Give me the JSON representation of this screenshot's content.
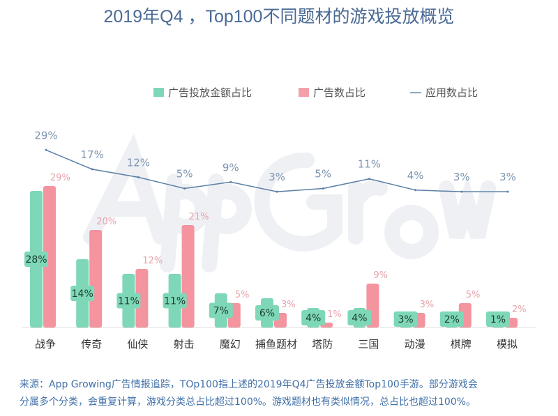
{
  "title": "2019年Q4 ，Top100不同题材的游戏投放概览",
  "watermark": "App Growing",
  "chart_data": {
    "type": "bar",
    "title": "2019年Q4 ，Top100不同题材的游戏投放概览",
    "categories": [
      "战争",
      "传奇",
      "仙侠",
      "射击",
      "魔幻",
      "捕鱼题材",
      "塔防",
      "三国",
      "动漫",
      "棋牌",
      "模拟"
    ],
    "series": [
      {
        "name": "广告投放金额占比",
        "kind": "bar",
        "color": "#7ed8b8",
        "values": [
          28,
          14,
          11,
          11,
          7,
          6,
          4,
          4,
          3,
          2,
          1
        ]
      },
      {
        "name": "广告数占比",
        "kind": "bar",
        "color": "#f4949f",
        "values": [
          29,
          20,
          12,
          21,
          5,
          3,
          1,
          9,
          3,
          5,
          2
        ]
      },
      {
        "name": "应用数占比",
        "kind": "line",
        "color": "#5a7fa6",
        "values": [
          29,
          17,
          12,
          5,
          9,
          3,
          5,
          11,
          4,
          3,
          3
        ]
      }
    ],
    "unit": "%",
    "legend": "top",
    "grid": false
  },
  "legend": {
    "items": [
      "广告投放金额占比",
      "广告数占比",
      "应用数占比"
    ]
  },
  "footnote": {
    "line1": "来源：App Growing广告情报追踪，TOp100指上述的2019年Q4广告投放金额Top100手游。部分游戏会",
    "line2": "分属多个分类，会重复计算，游戏分类总占比超过100%。游戏题材也有类似情况，总占比也超过100%。"
  }
}
